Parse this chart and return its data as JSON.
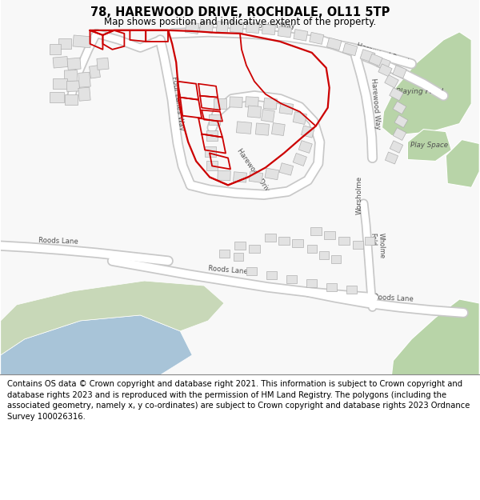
{
  "title": "78, HAREWOOD DRIVE, ROCHDALE, OL11 5TP",
  "subtitle": "Map shows position and indicative extent of the property.",
  "footer": "Contains OS data © Crown copyright and database right 2021. This information is subject to Crown copyright and database rights 2023 and is reproduced with the permission of HM Land Registry. The polygons (including the associated geometry, namely x, y co-ordinates) are subject to Crown copyright and database rights 2023 Ordnance Survey 100026316.",
  "bg_color": "#ffffff",
  "road_color": "#ffffff",
  "road_outline": "#c8c8c8",
  "building_color": "#e2e2e2",
  "building_outline": "#b0b0b0",
  "green_color": "#b8d4a8",
  "water_color": "#a8c4d8",
  "land_color": "#c8d8b8",
  "red_color": "#cc0000",
  "red_linewidth": 1.6,
  "title_fontsize": 10.5,
  "subtitle_fontsize": 8.5,
  "footer_fontsize": 7.2,
  "label_color": "#505050",
  "label_fontsize": 6.2
}
